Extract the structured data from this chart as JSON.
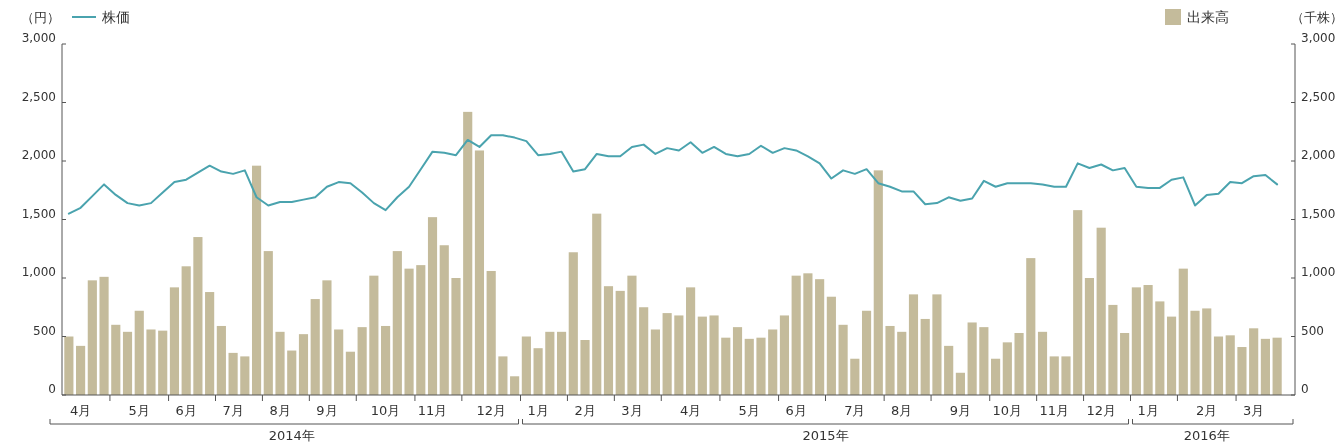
{
  "chart_data": {
    "type": "bar",
    "ylabel": "（円）",
    "y2label": "（千株）",
    "legend": "top",
    "categories": [
      null,
      "4月",
      null,
      null,
      null,
      null,
      "5月",
      null,
      null,
      null,
      "6月",
      null,
      null,
      null,
      "7月",
      null,
      null,
      null,
      "8月",
      null,
      null,
      null,
      "9月",
      null,
      null,
      null,
      null,
      "10月",
      null,
      null,
      null,
      "11月",
      null,
      null,
      null,
      null,
      "12月",
      null,
      null,
      null,
      "1月",
      null,
      null,
      null,
      "2月",
      null,
      null,
      null,
      "3月",
      null,
      null,
      null,
      null,
      "4月",
      null,
      null,
      null,
      null,
      "5月",
      null,
      null,
      null,
      "6月",
      null,
      null,
      null,
      null,
      "7月",
      null,
      null,
      null,
      "8月",
      null,
      null,
      null,
      null,
      "9月",
      null,
      null,
      null,
      "10月",
      null,
      null,
      null,
      "11月",
      null,
      null,
      null,
      "12月",
      null,
      null,
      null,
      "1月",
      null,
      null,
      null,
      null,
      "2月",
      null,
      null,
      null,
      "3月",
      null,
      null
    ],
    "ylim": [
      0,
      3000
    ],
    "yticks": [
      0,
      {
        "value": 500,
        "label": "500"
      },
      {
        "value": 1000,
        "label": "1,000"
      },
      {
        "value": 1500,
        "label": "1,500"
      },
      {
        "value": 2000,
        "label": "2,000"
      },
      {
        "value": 2500,
        "label": "2,500"
      },
      {
        "value": 3000,
        "label": "3,000"
      }
    ],
    "y2lim": [
      0,
      3000
    ],
    "y2ticks": [
      0,
      {
        "value": 500,
        "label": "500"
      },
      {
        "value": 1000,
        "label": "1,000"
      },
      {
        "value": 1500,
        "label": "1,500"
      },
      {
        "value": 2000,
        "label": "2,000"
      },
      {
        "value": 2500,
        "label": "2,500"
      },
      {
        "value": 3000,
        "label": "3,000"
      }
    ],
    "annotations": [
      "2014年",
      "2015年",
      "2016年"
    ],
    "series": [
      {
        "name": "出来高",
        "axis": "y2",
        "color": "#c4bb9b",
        "values": [
          500,
          420,
          980,
          1010,
          600,
          540,
          720,
          560,
          550,
          920,
          1100,
          1350,
          880,
          590,
          360,
          330,
          1960,
          1230,
          540,
          380,
          520,
          820,
          980,
          560,
          370,
          580,
          1020,
          590,
          1230,
          1080,
          1110,
          1520,
          1280,
          1000,
          2420,
          2090,
          1060,
          330,
          160,
          500,
          400,
          540,
          540,
          1220,
          470,
          1550,
          930,
          890,
          1020,
          750,
          560,
          700,
          680,
          920,
          670,
          680,
          490,
          580,
          480,
          490,
          560,
          680,
          1020,
          1040,
          990,
          840,
          600,
          310,
          720,
          1920,
          590,
          540,
          860,
          650,
          860,
          420,
          190,
          620,
          580,
          310,
          450,
          530,
          1170,
          540,
          330,
          330,
          1580,
          1000,
          1430,
          770,
          530,
          920,
          940,
          800,
          670,
          1080,
          720,
          740,
          500,
          510,
          410,
          570,
          480,
          490
        ]
      },
      {
        "name": "株価",
        "type": "line",
        "axis": "y",
        "color": "#4aa3ae",
        "values": [
          1550,
          1600,
          1700,
          1800,
          1710,
          1640,
          1620,
          1640,
          1730,
          1820,
          1840,
          1900,
          1960,
          1910,
          1890,
          1920,
          1690,
          1620,
          1650,
          1650,
          1670,
          1690,
          1780,
          1820,
          1810,
          1730,
          1640,
          1580,
          1690,
          1780,
          1930,
          2080,
          2070,
          2050,
          2180,
          2120,
          2220,
          2220,
          2200,
          2170,
          2050,
          2060,
          2080,
          1910,
          1930,
          2060,
          2040,
          2040,
          2120,
          2140,
          2060,
          2110,
          2090,
          2160,
          2070,
          2120,
          2060,
          2040,
          2060,
          2130,
          2070,
          2110,
          2090,
          2040,
          1980,
          1850,
          1920,
          1890,
          1930,
          1810,
          1780,
          1740,
          1740,
          1630,
          1640,
          1690,
          1660,
          1680,
          1830,
          1780,
          1810,
          1810,
          1810,
          1800,
          1780,
          1780,
          1980,
          1940,
          1970,
          1920,
          1940,
          1780,
          1770,
          1770,
          1840,
          1860,
          1620,
          1710,
          1720,
          1820,
          1810,
          1870,
          1880,
          1800
        ]
      }
    ]
  }
}
